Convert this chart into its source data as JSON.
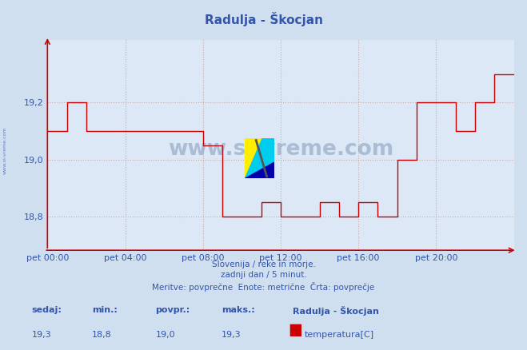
{
  "title": "Radulja - Škocjan",
  "bg_color": "#d0dff0",
  "plot_bg_color": "#dce8f5",
  "line_color": "#cc0000",
  "grid_color": "#cc9999",
  "axis_color": "#cc0000",
  "text_color": "#3355aa",
  "xlabel_ticks": [
    "pet 00:00",
    "pet 04:00",
    "pet 08:00",
    "pet 12:00",
    "pet 16:00",
    "pet 20:00"
  ],
  "ylabel_ticks": [
    18.8,
    19.0,
    19.2
  ],
  "ylim": [
    18.68,
    19.42
  ],
  "xlim": [
    0,
    288
  ],
  "subtitle1": "Slovenija / reke in morje.",
  "subtitle2": "zadnji dan / 5 minut.",
  "subtitle3": "Meritve: povprečne  Enote: metrične  Črta: povprečje",
  "footer_label1": "sedaj:",
  "footer_label2": "min.:",
  "footer_label3": "povpr.:",
  "footer_label4": "maks.:",
  "footer_val1": "19,3",
  "footer_val2": "18,8",
  "footer_val3": "19,0",
  "footer_val4": "19,3",
  "legend_title": "Radulja - Škocjan",
  "legend_item": "temperatura[C]",
  "legend_color": "#cc0000",
  "watermark": "www.si-vreme.com",
  "side_label": "www.si-vreme.com",
  "watermark_color": "#3a5a8a",
  "x_data": [
    0,
    12,
    12,
    24,
    24,
    96,
    96,
    108,
    108,
    132,
    132,
    144,
    144,
    168,
    168,
    180,
    180,
    192,
    192,
    204,
    204,
    216,
    216,
    228,
    228,
    252,
    252,
    264,
    264,
    276,
    276,
    288
  ],
  "y_data": [
    19.1,
    19.1,
    19.2,
    19.2,
    19.1,
    19.1,
    19.05,
    19.05,
    18.8,
    18.8,
    18.85,
    18.85,
    18.8,
    18.8,
    18.85,
    18.85,
    18.8,
    18.8,
    18.85,
    18.85,
    18.8,
    18.8,
    19.0,
    19.0,
    19.2,
    19.2,
    19.1,
    19.1,
    19.2,
    19.2,
    19.3,
    19.3
  ]
}
